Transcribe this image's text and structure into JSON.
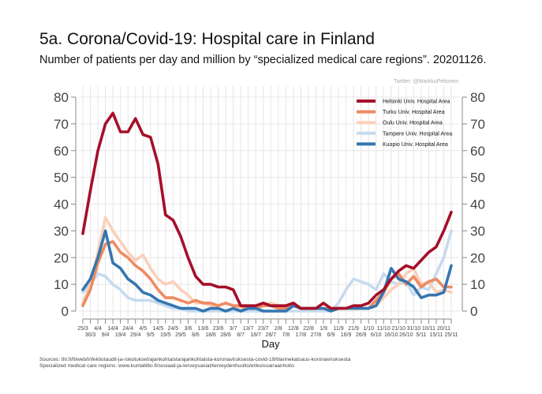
{
  "header": {
    "title": "5a. Corona/Covid-19: Hospital care in Finland",
    "subtitle": "Number of patients per day and million by “specialized medical care regions”. 20201126.",
    "credit": "Twitter: @MarkkuPeltonen"
  },
  "footer": {
    "sources_line1": "Sources: thl.fi/fi/web/infektiotaudit-ja-rokotukset/ajankohtaista/ajankohtaista-koronaviruksesta-covid-19/tilannekatsaus-koronaviruksesta",
    "sources_line2": "Specialized medical care regions: www.kuntaliitto.fi/sosiaali-ja-terveysasiat/terveydenhuolto/erikoissairaanhoito"
  },
  "chart_data": {
    "type": "line",
    "title": "5a. Corona/Covid-19: Hospital care in Finland",
    "xlabel": "Day",
    "ylabel": "",
    "ylim": [
      0,
      80
    ],
    "yticks": [
      0,
      10,
      20,
      30,
      40,
      50,
      60,
      70,
      80
    ],
    "y_axis_both_sides": true,
    "grid": true,
    "legend_position": "top-right",
    "x": [
      "25/3",
      "30/3",
      "4/4",
      "9/4",
      "14/4",
      "19/4",
      "24/4",
      "29/4",
      "4/5",
      "9/5",
      "14/5",
      "19/5",
      "24/5",
      "29/5",
      "3/6",
      "8/6",
      "13/6",
      "18/6",
      "23/6",
      "28/6",
      "3/7",
      "8/7",
      "13/7",
      "18/7",
      "23/7",
      "28/7",
      "2/8",
      "7/8",
      "12/8",
      "17/8",
      "22/8",
      "27/8",
      "1/9",
      "6/9",
      "11/9",
      "16/9",
      "21/9",
      "26/9",
      "1/10",
      "6/10",
      "11/10",
      "16/10",
      "21/10",
      "26/10",
      "31/10",
      "5/11",
      "10/11",
      "15/11",
      "20/11",
      "25/11"
    ],
    "x_tick_labels_row1": [
      "25/3",
      "4/4",
      "14/4",
      "24/4",
      "4/5",
      "14/5",
      "24/5",
      "3/6",
      "13/6",
      "23/6",
      "3/7",
      "13/7",
      "23/7",
      "2/8",
      "12/8",
      "22/8",
      "1/9",
      "11/9",
      "21/9",
      "1/10",
      "11/10",
      "21/10",
      "31/10",
      "10/11",
      "20/11"
    ],
    "x_tick_labels_row2": [
      "30/3",
      "9/4",
      "19/4",
      "29/4",
      "9/5",
      "19/5",
      "29/5",
      "8/6",
      "18/6",
      "28/6",
      "8/7",
      "18/7",
      "28/7",
      "7/8",
      "17/8",
      "27/8",
      "6/9",
      "16/9",
      "26/9",
      "6/10",
      "16/10",
      "26/10",
      "5/11",
      "15/11",
      "25/11"
    ],
    "series": [
      {
        "name": "Helsinki Univ. Hospital Area",
        "color": "#a50f2a",
        "values": [
          29,
          45,
          60,
          70,
          74,
          67,
          67,
          72,
          66,
          65,
          55,
          36,
          34,
          28,
          20,
          13,
          10,
          10,
          9,
          9,
          8,
          2,
          2,
          2,
          3,
          2,
          2,
          2,
          3,
          1,
          1,
          1,
          3,
          1,
          1,
          1,
          2,
          2,
          3,
          6,
          8,
          12,
          15,
          17,
          16,
          19,
          22,
          24,
          30,
          37
        ]
      },
      {
        "name": "Turku Univ. Hospital Area",
        "color": "#ef8a62",
        "values": [
          2,
          8,
          18,
          25,
          26,
          22,
          20,
          17,
          15,
          12,
          8,
          5,
          5,
          4,
          3,
          4,
          3,
          3,
          2,
          3,
          2,
          2,
          1,
          1,
          2,
          2,
          1,
          1,
          2,
          1,
          1,
          1,
          1,
          1,
          1,
          1,
          1,
          1,
          1,
          4,
          7,
          12,
          14,
          10,
          13,
          9,
          11,
          12,
          9,
          9
        ]
      },
      {
        "name": "Oulu Univ. Hospital Area",
        "color": "#fbd0b9",
        "values": [
          3,
          10,
          22,
          35,
          30,
          26,
          22,
          19,
          21,
          16,
          12,
          10,
          11,
          8,
          6,
          3,
          3,
          2,
          2,
          3,
          2,
          1,
          1,
          1,
          2,
          3,
          2,
          2,
          3,
          1,
          1,
          1,
          1,
          1,
          1,
          1,
          1,
          1,
          1,
          2,
          5,
          8,
          10,
          14,
          16,
          10,
          11,
          7,
          8,
          7
        ]
      },
      {
        "name": "Tampere Univ. Hospital Area",
        "color": "#c6dbef",
        "values": [
          7,
          10,
          14,
          13,
          10,
          8,
          5,
          4,
          4,
          4,
          3,
          2,
          1,
          1,
          0,
          0,
          0,
          0,
          0,
          0,
          0,
          0,
          0,
          0,
          0,
          0,
          0,
          0,
          0,
          0,
          0,
          0,
          0,
          0,
          3,
          8,
          12,
          11,
          10,
          8,
          14,
          11,
          10,
          11,
          6,
          9,
          8,
          14,
          20,
          30
        ]
      },
      {
        "name": "Kuopio Univ. Hospital Area",
        "color": "#3576b0",
        "values": [
          8,
          12,
          20,
          30,
          18,
          16,
          12,
          10,
          7,
          6,
          4,
          3,
          2,
          1,
          1,
          1,
          0,
          1,
          1,
          0,
          1,
          0,
          1,
          1,
          0,
          0,
          0,
          0,
          2,
          1,
          1,
          1,
          1,
          0,
          1,
          1,
          1,
          1,
          1,
          2,
          7,
          16,
          12,
          11,
          9,
          5,
          6,
          6,
          7,
          17
        ]
      }
    ]
  }
}
